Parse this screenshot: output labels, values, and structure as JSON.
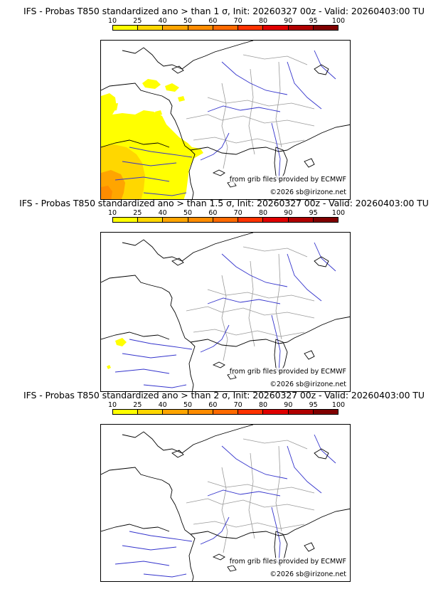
{
  "panels": [
    {
      "title": "IFS - Probas T850  standardized ano > than 1 σ, Init: 20260327 00z - Valid: 20260403:00 TU",
      "source_credit": "from grib files provided by ECMWF",
      "copyright": "©2026 sb@irizone.net"
    },
    {
      "title": "IFS - Probas T850  standardized ano > than 1.5 σ, Init: 20260327 00z - Valid: 20260403:00 TU",
      "source_credit": "from grib files provided by ECMWF",
      "copyright": "©2026 sb@irizone.net"
    },
    {
      "title": "IFS - Probas T850  standardized ano > than 2 σ, Init: 20260327 00z - Valid: 20260403:00 TU",
      "source_credit": "from grib files provided by ECMWF",
      "copyright": "©2026 sb@irizone.net"
    }
  ],
  "colorbar": {
    "ticks": [
      "10",
      "25",
      "40",
      "50",
      "60",
      "70",
      "80",
      "90",
      "95",
      "100"
    ],
    "colors": [
      "#ffff00",
      "#ffd700",
      "#ffa500",
      "#ff8c00",
      "#ff6a00",
      "#ff3300",
      "#e00000",
      "#b00000",
      "#800000"
    ]
  },
  "colors": {
    "rivers": "#3333cc",
    "borders": "#aaaaaa",
    "coastline": "#000000"
  }
}
